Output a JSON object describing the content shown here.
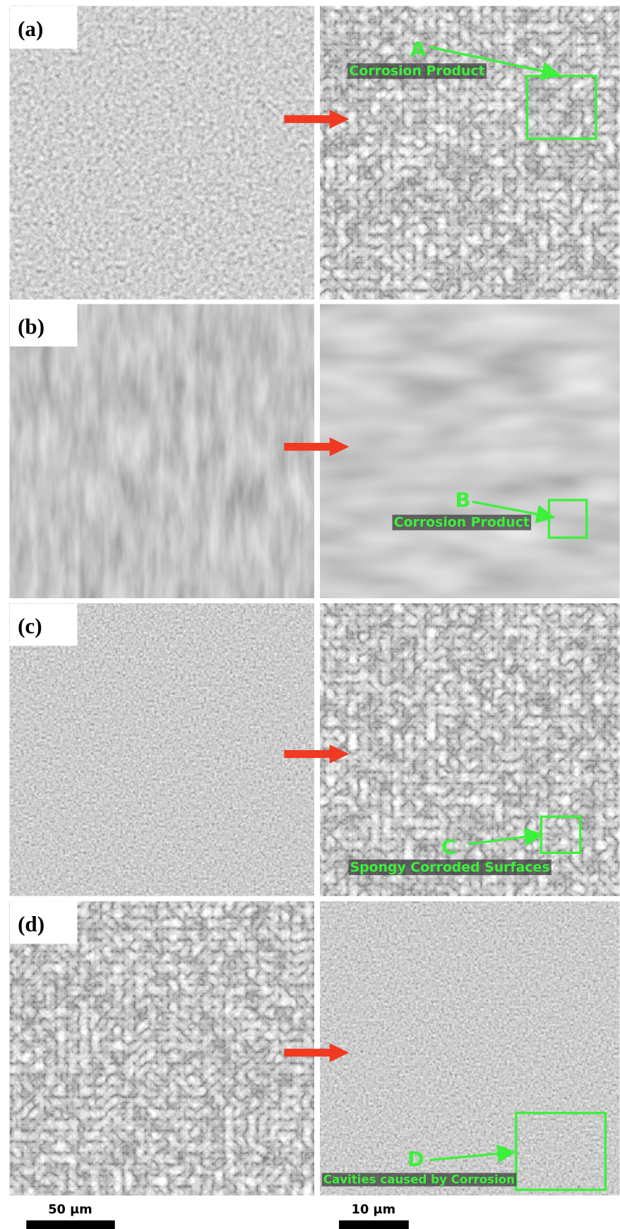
{
  "panels": [
    {
      "label": "(a)",
      "annotation": {
        "letter": "A",
        "text": "Corrosion Product"
      }
    },
    {
      "label": "(b)",
      "annotation": {
        "letter": "B",
        "text": "Corrosion Product"
      }
    },
    {
      "label": "(c)",
      "annotation": {
        "letter": "C",
        "text": "Spongy Corroded Surfaces"
      }
    },
    {
      "label": "(d)",
      "annotation": {
        "letter": "D",
        "text": "Cavities caused by Corrosion"
      }
    }
  ],
  "scale_bars": [
    {
      "label": "50 μm"
    },
    {
      "label": "10 μm"
    }
  ]
}
